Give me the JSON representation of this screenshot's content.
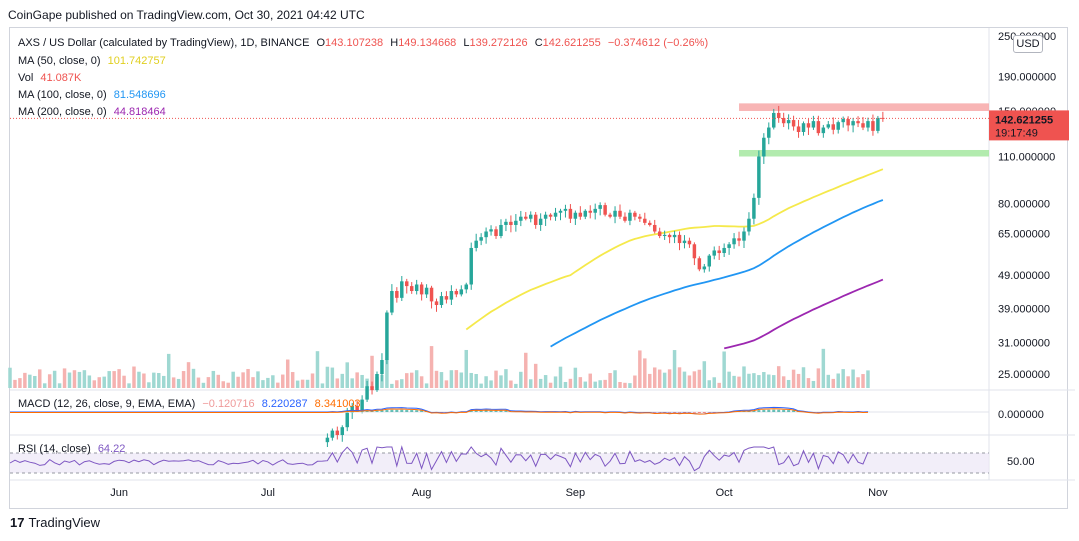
{
  "publisher": "CoinGape published on TradingView.com, Oct 30, 2021 04:42 UTC",
  "footer": {
    "logo": "17",
    "brand": "TradingView"
  },
  "currency_badge": "USD",
  "legend": {
    "symbol": "AXS / US Dollar (calculated by TradingView), 1D, BINANCE",
    "o_label": "O",
    "o_value": "143.107238",
    "h_label": "H",
    "h_value": "149.134668",
    "l_label": "L",
    "l_value": "139.272126",
    "c_label": "C",
    "c_value": "142.621255",
    "change": "−0.374612 (−0.26%)",
    "ma50_label": "MA (50, close, 0)",
    "ma50_value": "101.742757",
    "vol_label": "Vol",
    "vol_value": "41.087K",
    "ma100_label": "MA (100, close, 0)",
    "ma100_value": "81.548696",
    "ma200_label": "MA (200, close, 0)",
    "ma200_value": "44.818464",
    "macd_label": "MACD (12, 26, close, 9, EMA, EMA)",
    "macd_v1": "−0.120716",
    "macd_v2": "8.220287",
    "macd_v3": "8.341003",
    "rsi_label": "RSI (14, close)",
    "rsi_value": "64.22"
  },
  "price_badge": {
    "price": "142.621255",
    "countdown": "19:17:49"
  },
  "colors": {
    "up": "#26a69a",
    "down": "#ef5350",
    "ma50": "#f5e94b",
    "ma100": "#2196f3",
    "ma200": "#9c27b0",
    "macd_line": "#2962ff",
    "signal_line": "#ff6d00",
    "rsi": "#7e57c2",
    "resistance_zone": "#f7a8a8",
    "support_zone": "#a5e8a0"
  },
  "chart_data": [
    {
      "type": "candlestick",
      "title": "AXS / US Dollar (calculated by TradingView), 1D, BINANCE",
      "y_scale": "log",
      "y_ticks": [
        "250.000000",
        "190.000000",
        "150.000000",
        "110.000000",
        "80.000000",
        "65.000000",
        "49.000000",
        "39.000000",
        "31.000000",
        "25.000000"
      ],
      "y_tick_values": [
        250,
        190,
        150,
        110,
        80,
        65,
        49,
        39,
        31,
        25
      ],
      "x_ticks": [
        "Jun",
        "Jul",
        "Aug",
        "Sep",
        "Oct",
        "Nov"
      ],
      "x_tick_dates": [
        "2021-06-01",
        "2021-07-01",
        "2021-08-01",
        "2021-09-01",
        "2021-10-01",
        "2021-11-01"
      ],
      "x_range": [
        "2021-05-10",
        "2021-11-23"
      ],
      "last_close": 142.621255,
      "closes_from": "2021-07-13",
      "closes": [
        16.2,
        17.0,
        16.5,
        17.4,
        19.2,
        20.1,
        19.5,
        21.0,
        23.0,
        22.4,
        25.0,
        27.5,
        38.0,
        44.0,
        42.0,
        47.0,
        45.5,
        44.0,
        46.0,
        43.0,
        45.0,
        41.0,
        40.0,
        42.5,
        41.5,
        44.0,
        43.0,
        44.5,
        46.0,
        59.0,
        62.0,
        63.5,
        66.0,
        67.0,
        64.0,
        69.0,
        70.5,
        69.0,
        71.0,
        73.0,
        72.0,
        74.0,
        69.0,
        72.0,
        74.0,
        73.0,
        75.0,
        76.0,
        77.0,
        72.0,
        75.0,
        73.0,
        76.0,
        75.0,
        77.0,
        79.0,
        74.0,
        73.0,
        76.0,
        73.0,
        71.0,
        75.0,
        73.0,
        72.0,
        70.0,
        69.0,
        66.0,
        64.0,
        64.5,
        63.5,
        64.5,
        61.0,
        62.0,
        60.5,
        55.0,
        51.0,
        52.0,
        56.0,
        58.0,
        57.0,
        59.0,
        60.5,
        63.0,
        62.0,
        66.0,
        72.0,
        83.0,
        110.0,
        125.0,
        134.0,
        148.0,
        143.0,
        138.0,
        141.0,
        135.0,
        130.0,
        138.0,
        134.0,
        140.0,
        129.0,
        134.0,
        137.0,
        132.0,
        139.0,
        142.0,
        136.0,
        140.0,
        138.0,
        134.0,
        140.0,
        131.0,
        143.1,
        142.6
      ],
      "annotations": [
        {
          "label": "resistance zone",
          "from": 150,
          "to": 158,
          "start": "2021-10-04"
        },
        {
          "label": "support zone",
          "from": 110,
          "to": 115,
          "start": "2021-10-04"
        }
      ],
      "series": [
        {
          "name": "MA (50, close, 0)",
          "last": 101.742757
        },
        {
          "name": "MA (100, close, 0)",
          "last": 81.548696
        },
        {
          "name": "MA (200, close, 0)",
          "last": 44.818464
        },
        {
          "name": "Vol",
          "last": "41.087K"
        }
      ]
    },
    {
      "type": "line",
      "title": "MACD (12, 26, close, 9, EMA, EMA)",
      "y_ticks": [
        "0.000000"
      ],
      "y_tick_values": [
        0
      ],
      "series": [
        {
          "name": "MACD",
          "last": 8.220287
        },
        {
          "name": "Signal",
          "last": 8.341003
        },
        {
          "name": "Histogram",
          "last": -0.120716
        }
      ]
    },
    {
      "type": "line",
      "title": "RSI (14, close)",
      "y_ticks": [
        "50.00"
      ],
      "y_tick_values": [
        50
      ],
      "bands": [
        30,
        70
      ],
      "series": [
        {
          "name": "RSI (14, close)",
          "last": 64.22
        }
      ]
    }
  ]
}
